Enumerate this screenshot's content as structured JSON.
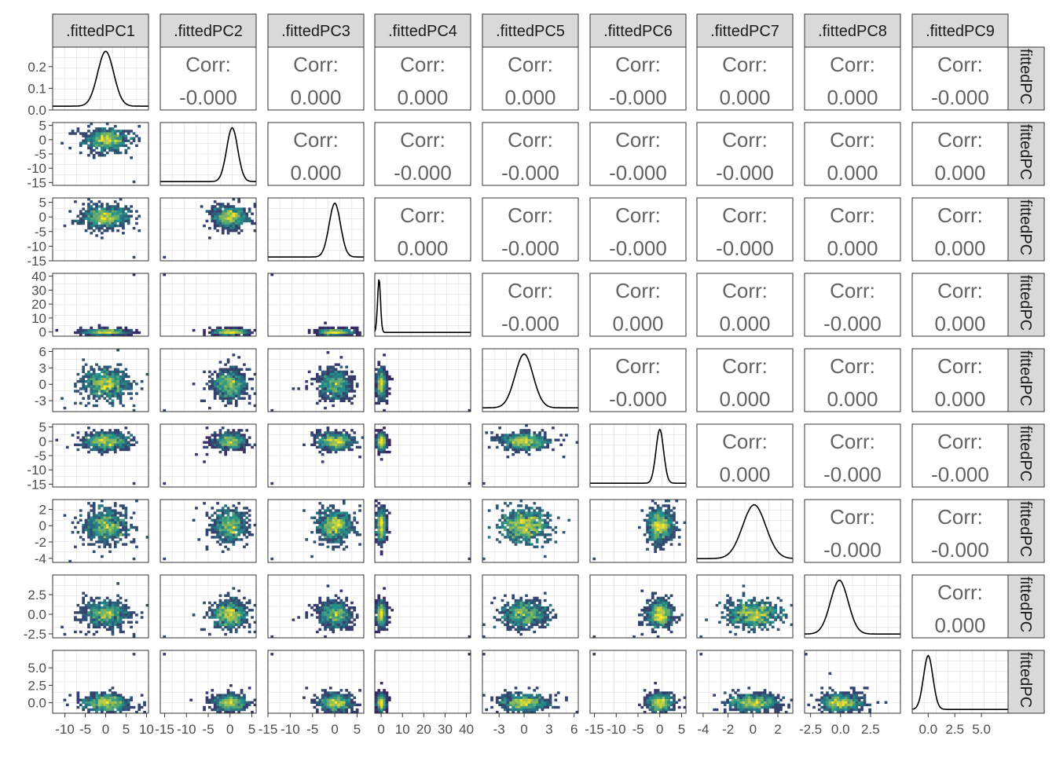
{
  "chart_data": {
    "type": "scatter-matrix",
    "title": "",
    "variables": [
      ".fittedPC1",
      ".fittedPC2",
      ".fittedPC3",
      ".fittedPC4",
      ".fittedPC5",
      ".fittedPC6",
      ".fittedPC7",
      ".fittedPC8",
      ".fittedPC9"
    ],
    "row_strip_labels": [
      "fittedPC",
      "fittedPC",
      "fittedPC",
      "fittedPC",
      "fittedPC",
      "fittedPC",
      "fittedPC",
      "fittedPC",
      "fittedPC"
    ],
    "corr_label": "Corr:",
    "correlations": [
      {
        "row": 0,
        "col": 1,
        "value": "-0.000"
      },
      {
        "row": 0,
        "col": 2,
        "value": "0.000"
      },
      {
        "row": 0,
        "col": 3,
        "value": "0.000"
      },
      {
        "row": 0,
        "col": 4,
        "value": "0.000"
      },
      {
        "row": 0,
        "col": 5,
        "value": "-0.000"
      },
      {
        "row": 0,
        "col": 6,
        "value": "0.000"
      },
      {
        "row": 0,
        "col": 7,
        "value": "0.000"
      },
      {
        "row": 0,
        "col": 8,
        "value": "-0.000"
      },
      {
        "row": 1,
        "col": 2,
        "value": "0.000"
      },
      {
        "row": 1,
        "col": 3,
        "value": "-0.000"
      },
      {
        "row": 1,
        "col": 4,
        "value": "-0.000"
      },
      {
        "row": 1,
        "col": 5,
        "value": "-0.000"
      },
      {
        "row": 1,
        "col": 6,
        "value": "-0.000"
      },
      {
        "row": 1,
        "col": 7,
        "value": "0.000"
      },
      {
        "row": 1,
        "col": 8,
        "value": "0.000"
      },
      {
        "row": 2,
        "col": 3,
        "value": "0.000"
      },
      {
        "row": 2,
        "col": 4,
        "value": "-0.000"
      },
      {
        "row": 2,
        "col": 5,
        "value": "-0.000"
      },
      {
        "row": 2,
        "col": 6,
        "value": "-0.000"
      },
      {
        "row": 2,
        "col": 7,
        "value": "0.000"
      },
      {
        "row": 2,
        "col": 8,
        "value": "0.000"
      },
      {
        "row": 3,
        "col": 4,
        "value": "-0.000"
      },
      {
        "row": 3,
        "col": 5,
        "value": "0.000"
      },
      {
        "row": 3,
        "col": 6,
        "value": "0.000"
      },
      {
        "row": 3,
        "col": 7,
        "value": "-0.000"
      },
      {
        "row": 3,
        "col": 8,
        "value": "0.000"
      },
      {
        "row": 4,
        "col": 5,
        "value": "-0.000"
      },
      {
        "row": 4,
        "col": 6,
        "value": "0.000"
      },
      {
        "row": 4,
        "col": 7,
        "value": "0.000"
      },
      {
        "row": 4,
        "col": 8,
        "value": "0.000"
      },
      {
        "row": 5,
        "col": 6,
        "value": "0.000"
      },
      {
        "row": 5,
        "col": 7,
        "value": "-0.000"
      },
      {
        "row": 5,
        "col": 8,
        "value": "-0.000"
      },
      {
        "row": 6,
        "col": 7,
        "value": "-0.000"
      },
      {
        "row": 6,
        "col": 8,
        "value": "-0.000"
      },
      {
        "row": 7,
        "col": 8,
        "value": "0.000"
      }
    ],
    "density_y_ticks": {
      "labels": [
        "0.0",
        "0.1",
        "0.2"
      ],
      "values": [
        0.0,
        0.1,
        0.2
      ],
      "range": [
        0,
        0.29
      ]
    },
    "y_axes": [
      null,
      {
        "range": [
          -16,
          6
        ],
        "labels": [
          "5",
          "0",
          "-5",
          "-10",
          "-15"
        ],
        "values": [
          5,
          0,
          -5,
          -10,
          -15
        ]
      },
      {
        "range": [
          -15,
          6.5
        ],
        "labels": [
          "5",
          "0",
          "-5",
          "-10",
          "-15"
        ],
        "values": [
          5,
          0,
          -5,
          -10,
          -15
        ]
      },
      {
        "range": [
          -3,
          42
        ],
        "labels": [
          "40",
          "30",
          "20",
          "10",
          "0"
        ],
        "values": [
          40,
          30,
          20,
          10,
          0
        ]
      },
      {
        "range": [
          -5,
          6.5
        ],
        "labels": [
          "6",
          "3",
          "0",
          "-3"
        ],
        "values": [
          6,
          3,
          0,
          -3
        ]
      },
      {
        "range": [
          -16,
          6
        ],
        "labels": [
          "5",
          "0",
          "-5",
          "-10",
          "-15"
        ],
        "values": [
          5,
          0,
          -5,
          -10,
          -15
        ]
      },
      {
        "range": [
          -4.5,
          3.2
        ],
        "labels": [
          "2",
          "0",
          "-2",
          "-4"
        ],
        "values": [
          2,
          0,
          -2,
          -4
        ]
      },
      {
        "range": [
          -3,
          5
        ],
        "labels": [
          "2.5",
          "0.0",
          "-2.5"
        ],
        "values": [
          2.5,
          0.0,
          -2.5
        ]
      },
      {
        "range": [
          -1.5,
          7.5
        ],
        "labels": [
          "5.0",
          "2.5",
          "0.0"
        ],
        "values": [
          5.0,
          2.5,
          0.0
        ]
      }
    ],
    "x_axes": [
      {
        "range": [
          -13,
          10.5
        ],
        "labels": [
          "-10",
          "-5",
          "0",
          "5",
          "10"
        ],
        "values": [
          -10,
          -5,
          0,
          5,
          10
        ]
      },
      {
        "range": [
          -16,
          6
        ],
        "labels": [
          "-15",
          "-10",
          "-5",
          "0",
          "5"
        ],
        "values": [
          -15,
          -10,
          -5,
          0,
          5
        ]
      },
      {
        "range": [
          -15,
          6.5
        ],
        "labels": [
          "-15",
          "-10",
          "-5",
          "0",
          "5"
        ],
        "values": [
          -15,
          -10,
          -5,
          0,
          5
        ]
      },
      {
        "range": [
          -3,
          42
        ],
        "labels": [
          "0",
          "10",
          "20",
          "30",
          "40"
        ],
        "values": [
          0,
          10,
          20,
          30,
          40
        ]
      },
      {
        "range": [
          -5,
          6.5
        ],
        "labels": [
          "-3",
          "0",
          "3",
          "6"
        ],
        "values": [
          -3,
          0,
          3,
          6
        ]
      },
      {
        "range": [
          -16,
          6
        ],
        "labels": [
          "-15",
          "-10",
          "-5",
          "0",
          "5"
        ],
        "values": [
          -15,
          -10,
          -5,
          0,
          5
        ]
      },
      {
        "range": [
          -4.5,
          3.2
        ],
        "labels": [
          "-4",
          "-2",
          "0",
          "2"
        ],
        "values": [
          -4,
          -2,
          0,
          2
        ]
      },
      {
        "range": [
          -3,
          5
        ],
        "labels": [
          "-2.5",
          "0.0",
          "2.5"
        ],
        "values": [
          -2.5,
          0.0,
          2.5
        ]
      },
      {
        "range": [
          -1.5,
          7.5
        ],
        "labels": [
          "0.0",
          "2.5",
          "5.0"
        ],
        "values": [
          0.0,
          2.5,
          5.0
        ]
      }
    ],
    "density_peaks": [
      {
        "peak": 0,
        "sd": 2.0
      },
      {
        "peak": 0.5,
        "sd": 1.3
      },
      {
        "peak": 0,
        "sd": 1.3
      },
      {
        "peak": -1,
        "sd": 0.7
      },
      {
        "peak": 0,
        "sd": 1.1
      },
      {
        "peak": 0,
        "sd": 0.9
      },
      {
        "peak": 0.1,
        "sd": 0.95
      },
      {
        "peak": -0.1,
        "sd": 0.75
      },
      {
        "peak": 0,
        "sd": 0.45
      }
    ],
    "marginal_sd": [
      2.6,
      1.8,
      1.8,
      1.0,
      1.3,
      1.4,
      0.95,
      0.8,
      0.6
    ],
    "outlier": [
      7,
      -15,
      -14,
      41,
      -4.8,
      -15,
      -4.2,
      -2.8,
      7
    ],
    "grid": true,
    "color_scale": {
      "low": "#440154",
      "mid": "#21918c",
      "high": "#fde725"
    },
    "panel_border": "#333333",
    "strip_fill": "#d9d9d9"
  }
}
